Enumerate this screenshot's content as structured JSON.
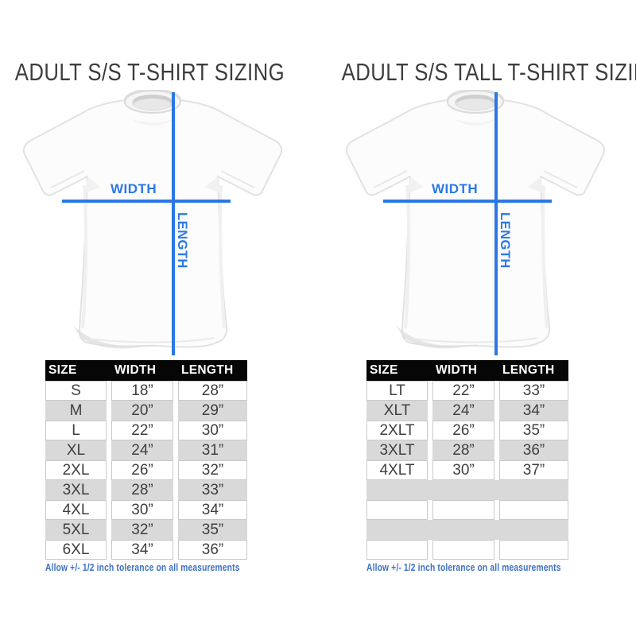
{
  "colors": {
    "accent_blue": "#2b78e4",
    "note_blue": "#3e71c4",
    "header_bg": "#060606",
    "header_fg": "#ffffff",
    "row_gray": "#d9d9d9",
    "cell_border": "#c9c9c9",
    "cell_fg": "#3f3f3f",
    "title_fg": "#3d3d3d"
  },
  "panels": [
    {
      "title": "ADULT S/S T-SHIRT SIZING",
      "diagram": {
        "width_label": "WIDTH",
        "length_label": "LENGTH"
      },
      "table": {
        "headers": [
          "SIZE",
          "WIDTH",
          "LENGTH"
        ],
        "rows": [
          [
            "S",
            "18”",
            "28”"
          ],
          [
            "M",
            "20”",
            "29”"
          ],
          [
            "L",
            "22”",
            "30”"
          ],
          [
            "XL",
            "24”",
            "31”"
          ],
          [
            "2XL",
            "26”",
            "32”"
          ],
          [
            "3XL",
            "28”",
            "33”"
          ],
          [
            "4XL",
            "30”",
            "34”"
          ],
          [
            "5XL",
            "32”",
            "35”"
          ],
          [
            "6XL",
            "34”",
            "36”"
          ]
        ],
        "empty_rows": 0
      },
      "note": "Allow +/- 1/2 inch tolerance on all measurements"
    },
    {
      "title": "ADULT S/S TALL T-SHIRT SIZING",
      "diagram": {
        "width_label": "WIDTH",
        "length_label": "LENGTH"
      },
      "table": {
        "headers": [
          "SIZE",
          "WIDTH",
          "LENGTH"
        ],
        "rows": [
          [
            "LT",
            "22”",
            "33”"
          ],
          [
            "XLT",
            "24”",
            "34”"
          ],
          [
            "2XLT",
            "26”",
            "35”"
          ],
          [
            "3XLT",
            "28”",
            "36”"
          ],
          [
            "4XLT",
            "30”",
            "37”"
          ]
        ],
        "empty_rows": 4
      },
      "note": "Allow +/- 1/2 inch tolerance on all measurements"
    }
  ]
}
